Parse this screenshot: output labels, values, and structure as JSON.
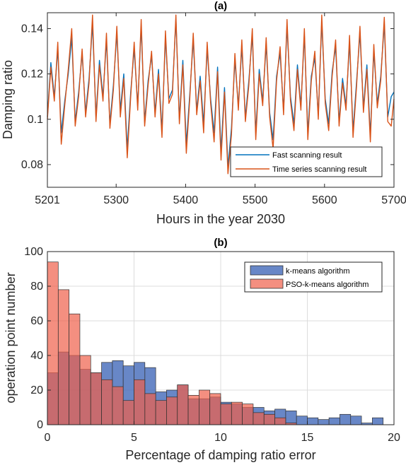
{
  "chart_data": [
    {
      "type": "line",
      "title": "(a)",
      "xlabel": "Hours in the year 2030",
      "ylabel": "Damping ratio",
      "xlim": [
        5201,
        5700
      ],
      "ylim": [
        0.07,
        0.147
      ],
      "xticks": [
        5201,
        5300,
        5400,
        5500,
        5600,
        5700
      ],
      "yticks": [
        0.08,
        0.1,
        0.12,
        0.14
      ],
      "xticklabels": [
        "5201",
        "5300",
        "5400",
        "5500",
        "5600",
        "5700"
      ],
      "yticklabels": [
        "0.08",
        "0.1",
        "0.12",
        "0.14"
      ],
      "grid": false,
      "legend_position": "bottom-right",
      "x": [
        5201,
        5206,
        5211,
        5216,
        5221,
        5226,
        5231,
        5236,
        5241,
        5246,
        5251,
        5256,
        5261,
        5266,
        5271,
        5276,
        5281,
        5286,
        5291,
        5296,
        5301,
        5306,
        5311,
        5316,
        5321,
        5326,
        5331,
        5336,
        5341,
        5346,
        5351,
        5356,
        5361,
        5366,
        5371,
        5376,
        5381,
        5386,
        5391,
        5396,
        5401,
        5406,
        5411,
        5416,
        5421,
        5426,
        5431,
        5436,
        5441,
        5446,
        5451,
        5456,
        5461,
        5466,
        5471,
        5476,
        5481,
        5486,
        5491,
        5496,
        5501,
        5506,
        5511,
        5516,
        5521,
        5526,
        5531,
        5536,
        5541,
        5546,
        5551,
        5556,
        5561,
        5566,
        5571,
        5576,
        5581,
        5586,
        5591,
        5596,
        5601,
        5606,
        5611,
        5616,
        5621,
        5626,
        5631,
        5636,
        5641,
        5646,
        5651,
        5656,
        5661,
        5666,
        5671,
        5676,
        5681,
        5686,
        5691,
        5696,
        5700
      ],
      "series": [
        {
          "name": "Fast scanning result",
          "color": "#0072BD",
          "values": [
            0.101,
            0.125,
            0.11,
            0.131,
            0.094,
            0.108,
            0.12,
            0.136,
            0.099,
            0.112,
            0.129,
            0.103,
            0.118,
            0.142,
            0.101,
            0.126,
            0.11,
            0.135,
            0.098,
            0.115,
            0.138,
            0.104,
            0.12,
            0.087,
            0.112,
            0.131,
            0.106,
            0.141,
            0.099,
            0.117,
            0.128,
            0.103,
            0.122,
            0.095,
            0.136,
            0.109,
            0.113,
            0.144,
            0.1,
            0.126,
            0.089,
            0.111,
            0.135,
            0.104,
            0.119,
            0.098,
            0.131,
            0.109,
            0.094,
            0.123,
            0.086,
            0.114,
            0.079,
            0.096,
            0.126,
            0.106,
            0.132,
            0.101,
            0.117,
            0.137,
            0.094,
            0.122,
            0.108,
            0.133,
            0.103,
            0.091,
            0.119,
            0.129,
            0.104,
            0.141,
            0.11,
            0.098,
            0.124,
            0.106,
            0.137,
            0.094,
            0.119,
            0.127,
            0.102,
            0.143,
            0.109,
            0.098,
            0.121,
            0.132,
            0.099,
            0.118,
            0.106,
            0.134,
            0.095,
            0.116,
            0.138,
            0.105,
            0.124,
            0.093,
            0.13,
            0.107,
            0.119,
            0.142,
            0.101,
            0.11,
            0.112
          ]
        },
        {
          "name": "Time series scanning result",
          "color": "#D95319",
          "values": [
            0.1,
            0.123,
            0.108,
            0.134,
            0.089,
            0.106,
            0.122,
            0.14,
            0.097,
            0.11,
            0.131,
            0.101,
            0.116,
            0.146,
            0.099,
            0.124,
            0.108,
            0.138,
            0.096,
            0.113,
            0.141,
            0.101,
            0.118,
            0.083,
            0.11,
            0.134,
            0.104,
            0.144,
            0.097,
            0.115,
            0.13,
            0.101,
            0.12,
            0.092,
            0.139,
            0.107,
            0.111,
            0.146,
            0.098,
            0.124,
            0.085,
            0.109,
            0.138,
            0.102,
            0.117,
            0.094,
            0.134,
            0.107,
            0.09,
            0.121,
            0.082,
            0.112,
            0.076,
            0.093,
            0.129,
            0.104,
            0.135,
            0.099,
            0.115,
            0.14,
            0.091,
            0.12,
            0.106,
            0.136,
            0.101,
            0.087,
            0.117,
            0.132,
            0.102,
            0.144,
            0.108,
            0.095,
            0.122,
            0.104,
            0.14,
            0.091,
            0.117,
            0.13,
            0.1,
            0.146,
            0.107,
            0.095,
            0.119,
            0.135,
            0.097,
            0.116,
            0.104,
            0.137,
            0.092,
            0.114,
            0.141,
            0.103,
            0.122,
            0.09,
            0.133,
            0.105,
            0.117,
            0.145,
            0.099,
            0.097,
            0.109
          ]
        }
      ]
    },
    {
      "type": "bar",
      "title": "(b)",
      "xlabel": "Percentage of damping ratio error",
      "ylabel": "operation point number",
      "xlim": [
        0,
        20
      ],
      "ylim": [
        0,
        100
      ],
      "xticks": [
        0,
        5,
        10,
        15,
        20
      ],
      "yticks": [
        0,
        20,
        40,
        60,
        80,
        100
      ],
      "xticklabels": [
        "0",
        "5",
        "10",
        "15",
        "20"
      ],
      "yticklabels": [
        "0",
        "20",
        "40",
        "60",
        "80",
        "100"
      ],
      "grid": true,
      "legend_position": "top-right",
      "bin_edges": [
        0,
        0.625,
        1.25,
        1.875,
        2.5,
        3.125,
        3.75,
        4.375,
        5,
        5.625,
        6.25,
        6.875,
        7.5,
        8.125,
        8.75,
        9.375,
        10,
        10.625,
        11.25,
        11.875,
        12.5,
        13.125,
        13.75,
        14.375,
        15,
        15.625,
        16.25,
        16.875,
        17.5,
        18.125,
        18.75
      ],
      "series": [
        {
          "name": "k-means algorithm",
          "color": "#4D72BD",
          "values": [
            30,
            42,
            40,
            32,
            30,
            36,
            37,
            34,
            36,
            33,
            19,
            20,
            23,
            15,
            15,
            16,
            13,
            12,
            10,
            10,
            8,
            9,
            8,
            5,
            4,
            3,
            4,
            6,
            5,
            1,
            4
          ]
        },
        {
          "name": "PSO-k-means algorithm",
          "color": "#F0604A",
          "values": [
            94,
            78,
            64,
            40,
            30,
            26,
            22,
            14,
            26,
            18,
            14,
            16,
            23,
            17,
            20,
            18,
            12,
            13,
            12,
            7,
            6,
            4,
            1,
            0,
            0,
            0,
            0,
            0,
            0,
            0,
            0
          ]
        }
      ]
    }
  ]
}
